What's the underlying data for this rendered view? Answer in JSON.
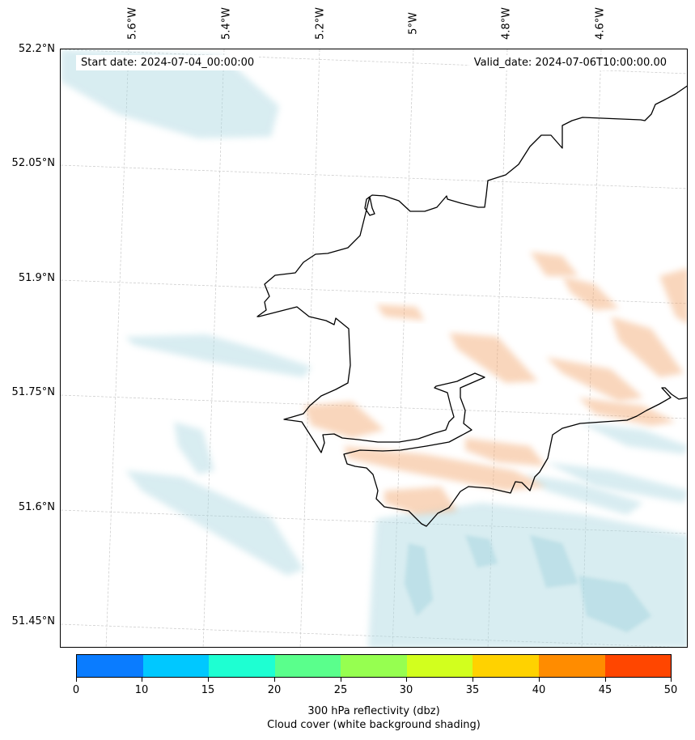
{
  "map": {
    "start_date": "Start date: 2024-07-04_00:00:00",
    "valid_date": "Valid_date: 2024-07-06T10:00:00.00",
    "lon_labels": [
      "5.6°W",
      "5.4°W",
      "5.2°W",
      "5°W",
      "4.8°W",
      "4.6°W"
    ],
    "lat_labels": [
      "52.2°N",
      "52.05°N",
      "51.9°N",
      "51.75°N",
      "51.6°N",
      "51.45°N"
    ],
    "coastline_color": "#000000",
    "cloud_color": "#a9d6e0",
    "reflectivity_color": "#f2a46a"
  },
  "colorbar": {
    "tick_labels": [
      "0",
      "10",
      "15",
      "20",
      "25",
      "30",
      "35",
      "40",
      "45",
      "50"
    ],
    "colors": [
      "#0a7cff",
      "#00c8ff",
      "#1effd2",
      "#5aff8c",
      "#96ff50",
      "#d2ff1e",
      "#ffd200",
      "#ff8c00",
      "#ff4600"
    ],
    "title_line1": "300 hPa reflectivity (dbz)",
    "title_line2": "Cloud cover (white background shading)"
  }
}
